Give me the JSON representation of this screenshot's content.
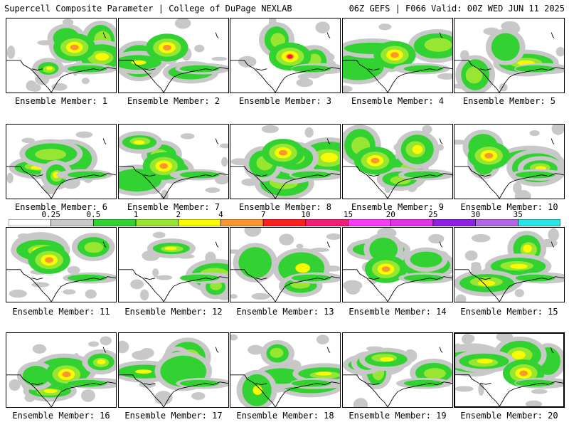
{
  "header": {
    "title_left": "Supercell Composite Parameter | College of DuPage NEXLAB",
    "title_right": "06Z GEFS | F066 Valid: 00Z WED JUN 11 2025"
  },
  "panels": [
    {
      "label": "Ensemble Member: 1"
    },
    {
      "label": "Ensemble Member: 2"
    },
    {
      "label": "Ensemble Member: 3"
    },
    {
      "label": "Ensemble Member: 4"
    },
    {
      "label": "Ensemble Member: 5"
    },
    {
      "label": "Ensemble Member: 6"
    },
    {
      "label": "Ensemble Member: 7"
    },
    {
      "label": "Ensemble Member: 8"
    },
    {
      "label": "Ensemble Member: 9"
    },
    {
      "label": "Ensemble Member: 10"
    },
    {
      "label": "Ensemble Member: 11"
    },
    {
      "label": "Ensemble Member: 12"
    },
    {
      "label": "Ensemble Member: 13"
    },
    {
      "label": "Ensemble Member: 14"
    },
    {
      "label": "Ensemble Member: 15"
    },
    {
      "label": "Ensemble Member: 16"
    },
    {
      "label": "Ensemble Member: 17"
    },
    {
      "label": "Ensemble Member: 18"
    },
    {
      "label": "Ensemble Member: 19"
    },
    {
      "label": "Ensemble Member: 20"
    }
  ],
  "colorbar": {
    "ticks": [
      "0.25",
      "0.5",
      "1",
      "2",
      "4",
      "7",
      "10",
      "15",
      "20",
      "25",
      "30",
      "35"
    ],
    "colors": [
      "#ffffff",
      "#c8c8c8",
      "#32d232",
      "#96e632",
      "#fafa00",
      "#fa9632",
      "#fa1e1e",
      "#f01e78",
      "#fa3cfa",
      "#e632e6",
      "#8c1ee6",
      "#b464e6",
      "#28e6e6"
    ]
  },
  "field_colors": {
    "gray": "#c8c8c8",
    "green": "#32d232",
    "lightgreen": "#96e632",
    "yellow": "#fafa00",
    "orange": "#fa9632",
    "red": "#fa1e1e"
  }
}
